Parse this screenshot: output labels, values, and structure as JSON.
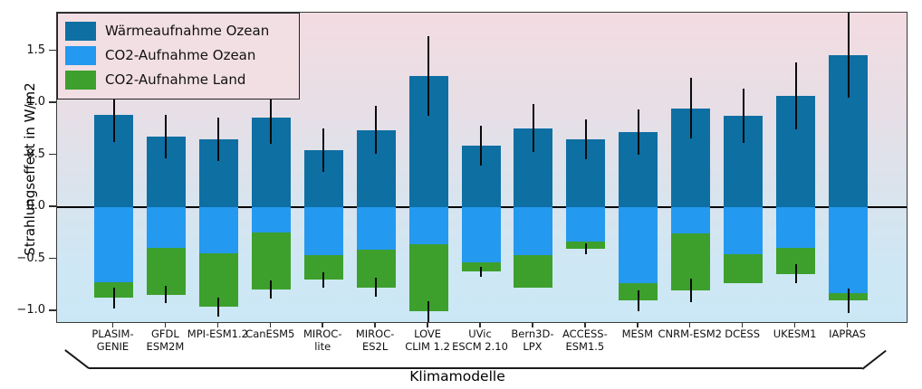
{
  "chart_data": {
    "type": "bar",
    "stacked": true,
    "title": "",
    "xlabel": "Klimamodelle",
    "ylabel": "Strahlungseffekt in W/m2",
    "ylim": [
      -1.12,
      1.87
    ],
    "grid": false,
    "legend_position": "upper-left",
    "yticks": [
      1.5,
      1.0,
      0.5,
      0.0,
      -0.5,
      -1.0
    ],
    "ytick_labels": [
      "1.5",
      "1.0",
      "0.5",
      "0.0",
      "−0.5",
      "−1.0"
    ],
    "categories": [
      "PLASIM-\nGENIE",
      "GFDL\nESM2M",
      "MPI-ESM1.2",
      "CanESM5",
      "MIROC-\nlite",
      "MIROC-\nES2L",
      "LOVE\nCLIM 1.2",
      "UVic\nESCM 2.10",
      "Bern3D-\nLPX",
      "ACCESS-\nESM1.5",
      "MESM",
      "CNRM-ESM2",
      "DCESS",
      "UKESM1",
      "IAPRAS"
    ],
    "series": [
      {
        "name": "Wärmeaufnahme Ozean",
        "color": "#0e6fa3",
        "values": [
          0.89,
          0.68,
          0.65,
          0.86,
          0.55,
          0.74,
          1.26,
          0.59,
          0.76,
          0.65,
          0.72,
          0.95,
          0.88,
          1.07,
          1.46
        ]
      },
      {
        "name": "CO2-Aufnahme Ozean",
        "color": "#2499f0",
        "values": [
          -0.72,
          -0.39,
          -0.44,
          -0.24,
          -0.46,
          -0.41,
          -0.36,
          -0.53,
          -0.46,
          -0.33,
          -0.73,
          -0.25,
          -0.45,
          -0.39,
          -0.83
        ]
      },
      {
        "name": "CO2-Aufnahme Land",
        "color": "#3da02c",
        "values": [
          -0.15,
          -0.45,
          -0.52,
          -0.55,
          -0.24,
          -0.36,
          -0.64,
          -0.09,
          -0.31,
          -0.07,
          -0.17,
          -0.55,
          -0.28,
          -0.25,
          -0.07
        ]
      }
    ],
    "errors_positive": [
      0.26,
      0.21,
      0.21,
      0.25,
      0.21,
      0.23,
      0.38,
      0.19,
      0.23,
      0.19,
      0.22,
      0.29,
      0.26,
      0.32,
      0.41
    ],
    "errors_negative": [
      0.1,
      0.08,
      0.09,
      0.09,
      0.07,
      0.09,
      0.1,
      0.05,
      0,
      0.05,
      0.1,
      0.11,
      0,
      0.09,
      0.12
    ],
    "error_color": "#0a0a0a",
    "background_gradient_top": "#f2dce1",
    "background_gradient_bottom": "#cbe7f5"
  }
}
